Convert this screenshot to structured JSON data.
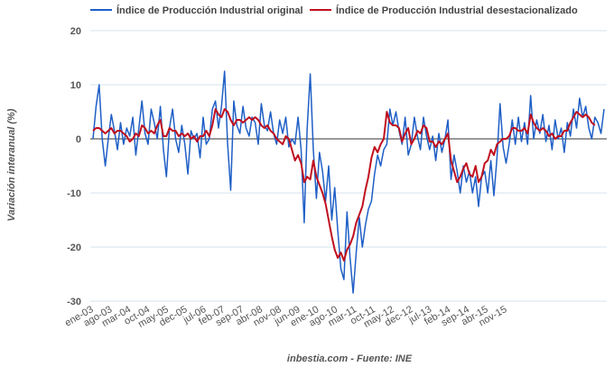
{
  "chart_data": {
    "type": "line",
    "ylabel": "Variación interanual (%)",
    "source": "inbestia.com - Fuente: INE",
    "ylim": [
      -30,
      20
    ],
    "yticks": [
      "20",
      "10",
      "0",
      "-10",
      "-20",
      "-30"
    ],
    "x_tick_labels": [
      "ene-03",
      "ago-03",
      "mar-04",
      "oct-04",
      "may-05",
      "dec-05",
      "jul-06",
      "feb-07",
      "sep-07",
      "abr-08",
      "nov-08",
      "jun-09",
      "ene-10",
      "ago-10",
      "mar-11",
      "oct-11",
      "may-12",
      "dec-12",
      "jul-13",
      "feb-14",
      "sep-14",
      "abr-15",
      "nov-15"
    ],
    "grid": true,
    "legend_position": "top",
    "colors": {
      "original": "#1f5fc6",
      "desestacionalizado": "#c0101e"
    },
    "series": [
      {
        "name": "Índice de Producción Industrial original",
        "values": [
          0.0,
          6.0,
          10.0,
          0.0,
          -5.0,
          0.0,
          4.5,
          1.5,
          -2.0,
          3.0,
          -1.0,
          2.0,
          0.5,
          4.0,
          -3.0,
          2.0,
          7.0,
          1.0,
          -1.0,
          5.5,
          3.0,
          0.0,
          6.0,
          -2.0,
          -7.0,
          2.0,
          5.5,
          0.0,
          -2.5,
          2.5,
          -1.0,
          -6.5,
          1.5,
          0.0,
          1.0,
          -3.5,
          4.0,
          -1.0,
          0.0,
          5.5,
          7.0,
          2.0,
          6.0,
          12.5,
          -1.0,
          -9.5,
          7.0,
          2.5,
          1.0,
          6.0,
          2.0,
          0.5,
          4.0,
          3.0,
          -1.0,
          6.5,
          2.5,
          1.5,
          5.0,
          1.0,
          -1.0,
          3.5,
          1.0,
          4.0,
          -1.5,
          0.0,
          -1.0,
          4.0,
          -2.0,
          -15.5,
          2.0,
          12.0,
          -2.0,
          -11.0,
          -2.5,
          -6.0,
          -11.5,
          -5.0,
          -15.0,
          -9.0,
          -17.0,
          -24.0,
          -26.0,
          -13.5,
          -22.0,
          -28.5,
          -21.0,
          -14.5,
          -20.0,
          -16.0,
          -13.0,
          -11.5,
          -6.5,
          -3.0,
          -5.0,
          -2.0,
          -1.0,
          5.5,
          2.5,
          5.0,
          1.5,
          -1.0,
          4.0,
          -3.0,
          -1.0,
          4.0,
          0.5,
          -2.0,
          4.0,
          0.5,
          -2.0,
          0.5,
          -4.0,
          1.0,
          -2.5,
          0.0,
          3.5,
          -7.5,
          -3.0,
          -6.0,
          -10.0,
          -5.0,
          -8.0,
          -6.0,
          -10.0,
          -7.0,
          -12.5,
          -7.0,
          -6.0,
          -10.0,
          -4.0,
          -10.5,
          -3.5,
          6.5,
          -1.5,
          -4.5,
          -1.0,
          3.5,
          -1.0,
          4.0,
          -0.5,
          3.0,
          -1.0,
          8.0,
          0.0,
          3.5,
          1.0,
          4.5,
          -0.5,
          2.5,
          -2.0,
          3.5,
          0.0,
          2.0,
          -2.5,
          3.0,
          0.5,
          5.5,
          2.0,
          7.5,
          4.0,
          6.0,
          2.0,
          0.0,
          4.0,
          3.0,
          1.0,
          5.5
        ]
      },
      {
        "name": "Índice de Producción Industrial desestacionalizado",
        "values": [
          1.5,
          2.0,
          2.0,
          1.5,
          1.0,
          1.5,
          2.0,
          1.0,
          1.5,
          1.5,
          1.0,
          0.5,
          -0.5,
          0.0,
          1.0,
          0.5,
          2.5,
          2.0,
          1.0,
          1.5,
          1.0,
          2.5,
          3.5,
          0.5,
          0.5,
          2.0,
          1.5,
          1.5,
          0.5,
          1.0,
          0.5,
          1.0,
          0.0,
          0.5,
          -0.5,
          0.5,
          0.5,
          1.5,
          0.5,
          2.5,
          5.5,
          4.5,
          4.0,
          5.5,
          5.0,
          3.5,
          2.5,
          3.5,
          3.5,
          3.0,
          3.5,
          4.0,
          3.5,
          4.0,
          3.5,
          2.5,
          2.0,
          2.5,
          1.5,
          1.0,
          0.0,
          -0.5,
          -1.0,
          0.5,
          0.0,
          -2.0,
          -4.0,
          -3.0,
          -4.5,
          -8.0,
          -7.0,
          -7.5,
          -4.0,
          -7.0,
          -8.5,
          -10.0,
          -12.0,
          -15.0,
          -18.0,
          -20.5,
          -22.0,
          -21.0,
          -22.5,
          -20.5,
          -19.5,
          -18.0,
          -15.5,
          -14.0,
          -12.5,
          -9.5,
          -7.0,
          -3.5,
          -1.5,
          -2.5,
          -1.0,
          0.0,
          5.0,
          3.0,
          2.5,
          2.5,
          2.0,
          -0.5,
          1.0,
          2.0,
          -1.0,
          0.0,
          1.5,
          1.0,
          2.5,
          2.0,
          -0.5,
          -0.5,
          -1.5,
          -0.5,
          -1.0,
          0.0,
          1.0,
          -4.0,
          -6.0,
          -8.0,
          -7.0,
          -5.5,
          -4.5,
          -6.5,
          -7.0,
          -5.0,
          -8.0,
          -7.0,
          -4.5,
          -4.0,
          -2.0,
          -3.0,
          -1.0,
          -0.5,
          0.0,
          0.0,
          0.5,
          2.0,
          2.0,
          1.5,
          1.5,
          2.0,
          1.0,
          4.5,
          3.0,
          2.0,
          1.5,
          2.0,
          1.5,
          0.5,
          1.0,
          0.0,
          0.5,
          0.5,
          1.5,
          1.5,
          3.0,
          4.0,
          5.0,
          4.5,
          4.0,
          4.5,
          4.0,
          3.0,
          2.5
        ]
      }
    ]
  }
}
